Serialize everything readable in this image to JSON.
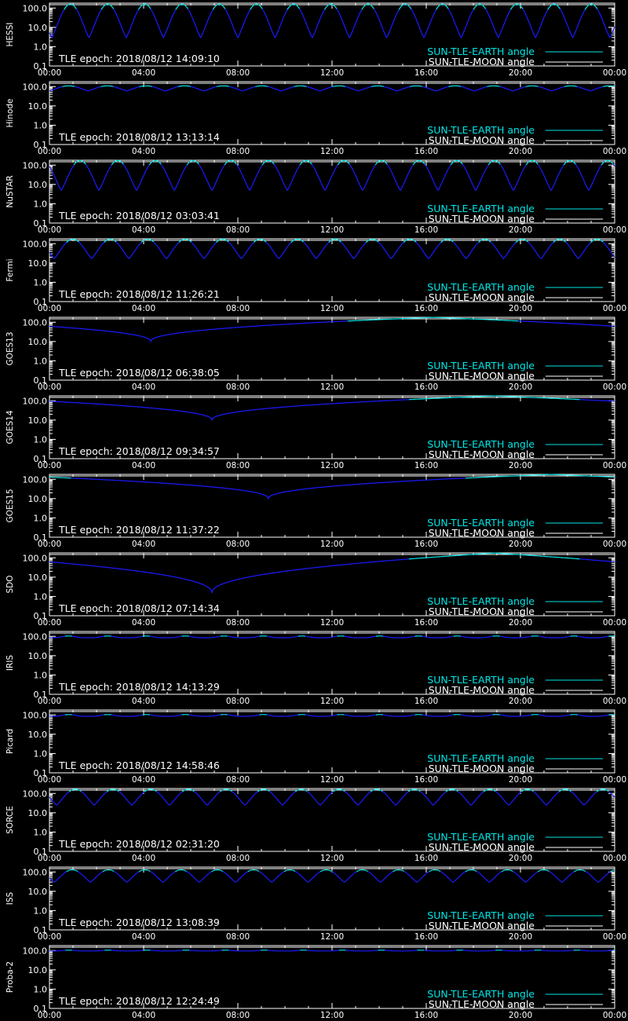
{
  "chart_data": {
    "type": "line",
    "x_ticks": [
      "00:00",
      "04:00",
      "08:00",
      "12:00",
      "16:00",
      "20:00",
      "00:00"
    ],
    "x_range_hours": [
      0,
      24
    ],
    "y_scale": "log",
    "y_ticks": [
      "100.0",
      "10.0",
      "1.0",
      "0.1"
    ],
    "y_range": [
      0.1,
      180
    ],
    "legend": {
      "position": "bottom-right",
      "entries": [
        {
          "label": "SUN-TLE-EARTH angle",
          "color": "#00e5e5"
        },
        {
          "label": "SUN-TLE-MOON angle",
          "color": "#ffffff"
        }
      ]
    },
    "colors": {
      "earth_angle": "#00e5e5",
      "eclipse_segment": "#1a1aff",
      "moon_angle": "#ffffff",
      "frame": "#ffffff"
    },
    "moon_angle_value": 150,
    "panels": [
      {
        "satellite": "HESSI",
        "epoch": "TLE epoch: 2018/08/12 14:09:10",
        "model": "orbit",
        "period_h": 1.58,
        "phase_h": 0.1,
        "max": 160,
        "min": 3,
        "eclipse": true
      },
      {
        "satellite": "Hinode",
        "epoch": "TLE epoch: 2018/08/12 13:13:14",
        "model": "orbit",
        "period_h": 1.64,
        "phase_h": 0.0,
        "max": 110,
        "min": 60,
        "eclipse": true
      },
      {
        "satellite": "NuSTAR",
        "epoch": "TLE epoch: 2018/08/12 03:03:41",
        "model": "orbit",
        "period_h": 1.6,
        "phase_h": 0.5,
        "max": 175,
        "min": 5,
        "eclipse": true
      },
      {
        "satellite": "Fermi",
        "epoch": "TLE epoch: 2018/08/12 11:26:21",
        "model": "orbit",
        "period_h": 1.59,
        "phase_h": 0.2,
        "max": 170,
        "min": 17,
        "eclipse": true
      },
      {
        "satellite": "GOES13",
        "epoch": "TLE epoch: 2018/08/12 06:38:05",
        "model": "geo",
        "min_time_h": 4.3,
        "min": 10,
        "max": 178
      },
      {
        "satellite": "GOES14",
        "epoch": "TLE epoch: 2018/08/12 09:34:57",
        "model": "geo",
        "min_time_h": 6.9,
        "min": 10,
        "max": 178
      },
      {
        "satellite": "GOES15",
        "epoch": "TLE epoch: 2018/08/12 11:37:22",
        "model": "geo",
        "min_time_h": 9.3,
        "min": 10,
        "max": 178
      },
      {
        "satellite": "SDO",
        "epoch": "TLE epoch: 2018/08/12 07:14:34",
        "model": "geo",
        "min_time_h": 6.9,
        "min": 1.5,
        "max": 178
      },
      {
        "satellite": "IRIS",
        "epoch": "TLE epoch: 2018/08/12 14:13:29",
        "model": "flat",
        "period_h": 1.65,
        "max": 105,
        "min": 85
      },
      {
        "satellite": "Picard",
        "epoch": "TLE epoch: 2018/08/12 14:58:46",
        "model": "flat",
        "period_h": 1.65,
        "max": 105,
        "min": 85
      },
      {
        "satellite": "SORCE",
        "epoch": "TLE epoch: 2018/08/12 02:31:20",
        "model": "orbit",
        "period_h": 1.6,
        "phase_h": 0.3,
        "max": 165,
        "min": 25,
        "eclipse": true
      },
      {
        "satellite": "ISS",
        "epoch": "TLE epoch: 2018/08/12 13:08:39",
        "model": "orbit",
        "period_h": 1.54,
        "phase_h": 0.2,
        "max": 130,
        "min": 30,
        "eclipse": true
      },
      {
        "satellite": "Proba-2",
        "epoch": "TLE epoch: 2018/08/12 12:24:49",
        "model": "flat",
        "period_h": 1.66,
        "max": 105,
        "min": 95
      }
    ]
  }
}
